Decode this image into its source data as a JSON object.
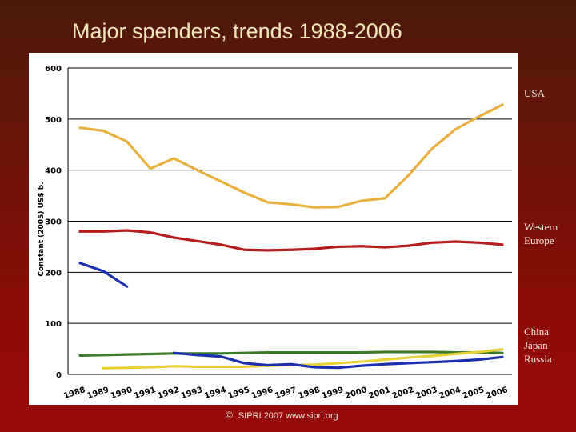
{
  "slide": {
    "title": "Major spenders, trends 1988-2006",
    "footer_symbol": "©",
    "footer_text": "SIPRI 2007   www.sipri.org",
    "region_labels": [
      {
        "name": "usa",
        "lines": [
          "USA"
        ]
      },
      {
        "name": "western-europe",
        "lines": [
          "Western",
          "Europe"
        ]
      },
      {
        "name": "china-japan-russia",
        "lines": [
          "China",
          "Japan",
          "Russia"
        ]
      }
    ]
  },
  "chart_data": {
    "type": "line",
    "title": "",
    "xlabel": "",
    "ylabel": "Constant (2005) US$ b.",
    "ylim": [
      0,
      600
    ],
    "yticks": [
      0,
      100,
      200,
      300,
      400,
      500,
      600
    ],
    "grid": true,
    "categories": [
      "1988",
      "1989",
      "1990",
      "1991",
      "1992",
      "1993",
      "1994",
      "1995",
      "1996",
      "1997",
      "1998",
      "1999",
      "2000",
      "2001",
      "2002",
      "2003",
      "2004",
      "2005",
      "2006"
    ],
    "series": [
      {
        "id": "usa",
        "color": "#e8b040",
        "values": [
          483,
          477,
          456,
          403,
          423,
          400,
          378,
          356,
          337,
          333,
          327,
          328,
          340,
          345,
          390,
          442,
          480,
          505,
          528
        ]
      },
      {
        "id": "western-europe",
        "color": "#b51c1c",
        "values": [
          280,
          280,
          282,
          278,
          268,
          261,
          254,
          244,
          243,
          244,
          246,
          250,
          251,
          249,
          252,
          258,
          260,
          258,
          254
        ]
      },
      {
        "id": "china",
        "color": "#e8d038",
        "values": [
          null,
          12,
          13,
          14,
          16,
          15,
          15,
          15,
          17,
          18,
          19,
          22,
          25,
          29,
          33,
          36,
          40,
          44,
          49
        ]
      },
      {
        "id": "japan",
        "color": "#3a7a28",
        "values": [
          37,
          38,
          39,
          40,
          41,
          41,
          41,
          42,
          43,
          43,
          43,
          43,
          43,
          44,
          44,
          44,
          43,
          43,
          42
        ]
      },
      {
        "id": "russia",
        "color": "#1a30b0",
        "segments": [
          {
            "x": [
              "1988",
              "1989",
              "1990"
            ],
            "values": [
              218,
              202,
              172
            ]
          },
          {
            "x": [
              "1992",
              "1993",
              "1994",
              "1995",
              "1996",
              "1997",
              "1998",
              "1999",
              "2000",
              "2001",
              "2002",
              "2003",
              "2004",
              "2005",
              "2006"
            ],
            "values": [
              42,
              38,
              35,
              22,
              18,
              20,
              14,
              13,
              17,
              20,
              22,
              24,
              26,
              29,
              34
            ]
          }
        ]
      }
    ]
  }
}
